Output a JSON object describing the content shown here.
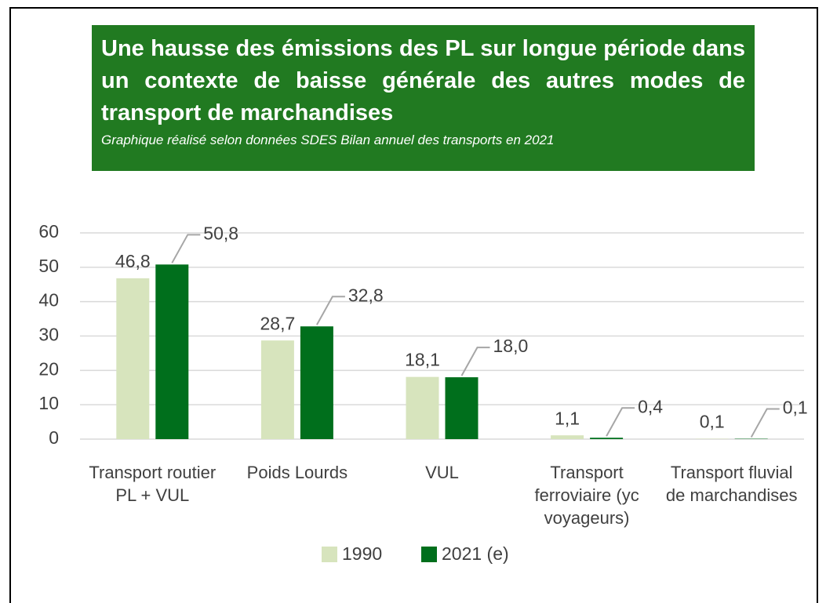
{
  "chart_data": {
    "type": "bar",
    "title": "Une hausse des émissions des PL sur longue période dans un contexte de baisse générale des autres modes de transport de marchandises",
    "subtitle": "Graphique réalisé selon données SDES Bilan annuel des transports en 2021",
    "categories": [
      "Transport routier PL + VUL",
      "Poids Lourds",
      "VUL",
      "Transport ferroviaire (yc voyageurs)",
      "Transport fluvial de marchandises"
    ],
    "series": [
      {
        "name": "1990",
        "color": "#d7e4bd",
        "values": [
          46.8,
          28.7,
          18.1,
          1.1,
          0.1
        ],
        "value_labels": [
          "46,8",
          "28,7",
          "18,1",
          "1,1",
          "0,1"
        ]
      },
      {
        "name": "2021 (e)",
        "color": "#006f1c",
        "values": [
          50.8,
          32.8,
          18.0,
          0.4,
          0.1
        ],
        "value_labels": [
          "50,8",
          "32,8",
          "18,0",
          "0,4",
          "0,1"
        ]
      }
    ],
    "ylim": [
      0,
      60
    ],
    "yticks": [
      0,
      10,
      20,
      30,
      40,
      50,
      60
    ],
    "grid": true,
    "legend": "bottom"
  }
}
